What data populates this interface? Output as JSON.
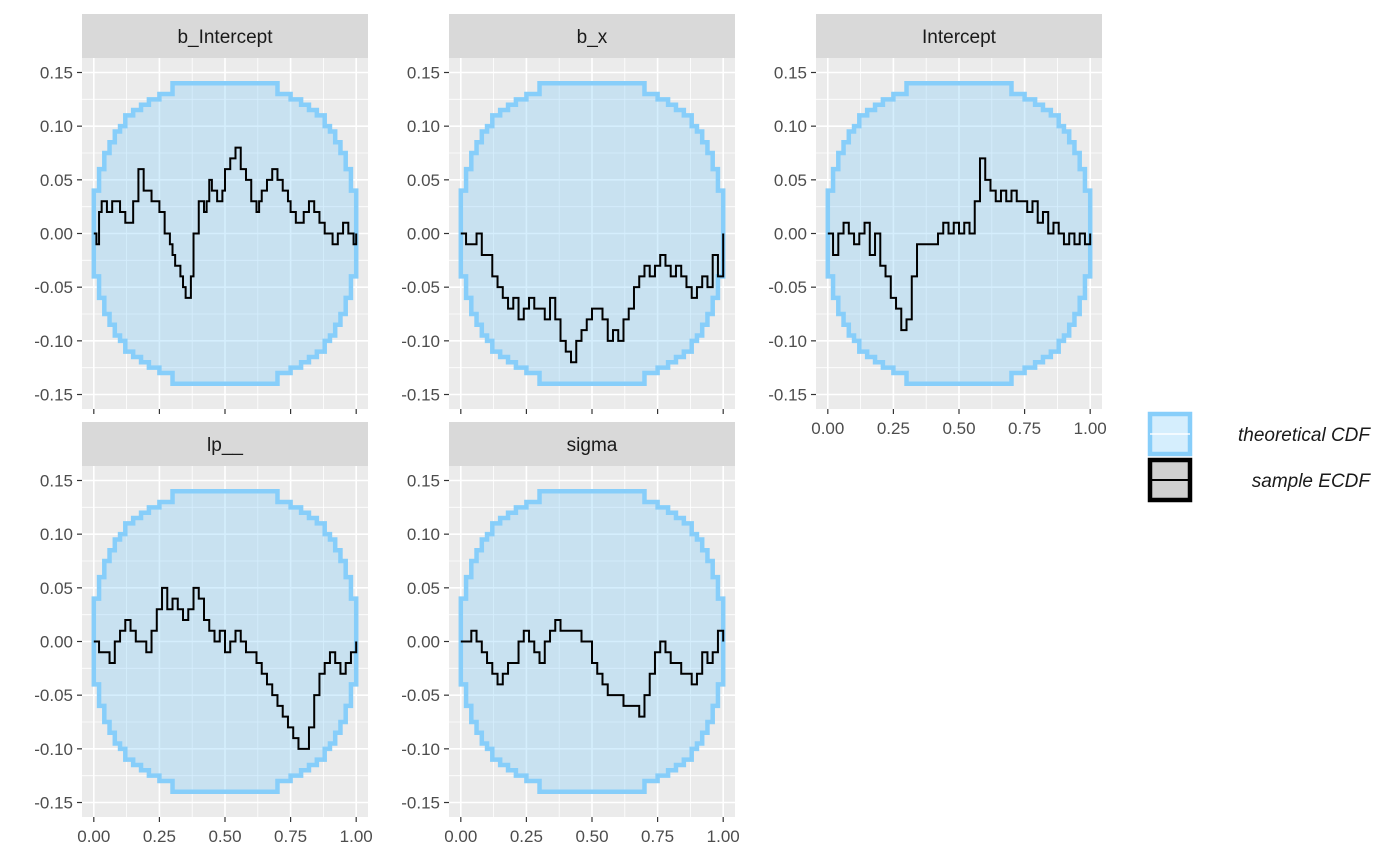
{
  "chart_data": {
    "type": "line",
    "xlim": [
      0,
      1
    ],
    "ylim": [
      -0.15,
      0.15
    ],
    "x_ticks": [
      "0.00",
      "0.25",
      "0.50",
      "0.75",
      "1.00"
    ],
    "y_ticks": [
      "0.15",
      "0.10",
      "0.05",
      "0.00",
      "-0.05",
      "-0.10",
      "-0.15"
    ],
    "grid": true,
    "legend_position": "right",
    "legend": [
      {
        "label": "theoretical CDF",
        "color": "#87CEFA"
      },
      {
        "label": "sample ECDF",
        "color": "#000000"
      }
    ],
    "band": {
      "x": [
        0,
        0.02,
        0.04,
        0.06,
        0.08,
        0.1,
        0.12,
        0.15,
        0.18,
        0.21,
        0.25,
        0.3,
        0.42,
        0.5,
        0.58,
        0.7,
        0.75,
        0.79,
        0.82,
        0.85,
        0.88,
        0.9,
        0.92,
        0.94,
        0.96,
        0.98,
        1
      ],
      "upper": [
        0.04,
        0.06,
        0.075,
        0.085,
        0.095,
        0.1,
        0.11,
        0.115,
        0.12,
        0.125,
        0.13,
        0.14,
        0.14,
        0.14,
        0.14,
        0.13,
        0.125,
        0.12,
        0.115,
        0.11,
        0.1,
        0.095,
        0.085,
        0.075,
        0.06,
        0.04,
        0
      ],
      "lower": [
        -0.04,
        -0.06,
        -0.075,
        -0.085,
        -0.095,
        -0.1,
        -0.11,
        -0.115,
        -0.12,
        -0.125,
        -0.13,
        -0.14,
        -0.14,
        -0.14,
        -0.14,
        -0.13,
        -0.125,
        -0.12,
        -0.115,
        -0.11,
        -0.1,
        -0.095,
        -0.085,
        -0.075,
        -0.06,
        -0.04,
        0
      ]
    },
    "panels": [
      {
        "title": "b_Intercept",
        "x": [
          0,
          0.01,
          0.02,
          0.03,
          0.05,
          0.07,
          0.1,
          0.12,
          0.15,
          0.17,
          0.19,
          0.22,
          0.25,
          0.27,
          0.29,
          0.3,
          0.31,
          0.33,
          0.34,
          0.35,
          0.37,
          0.38,
          0.4,
          0.42,
          0.43,
          0.44,
          0.45,
          0.47,
          0.49,
          0.5,
          0.52,
          0.54,
          0.56,
          0.58,
          0.6,
          0.62,
          0.63,
          0.64,
          0.66,
          0.68,
          0.7,
          0.72,
          0.74,
          0.75,
          0.77,
          0.8,
          0.82,
          0.84,
          0.86,
          0.88,
          0.91,
          0.93,
          0.95,
          0.97,
          0.99,
          1
        ],
        "y": [
          0,
          -0.01,
          0.02,
          0.03,
          0.02,
          0.03,
          0.02,
          0.01,
          0.03,
          0.06,
          0.04,
          0.03,
          0.02,
          0,
          -0.01,
          -0.02,
          -0.03,
          -0.04,
          -0.05,
          -0.06,
          -0.04,
          0,
          0.03,
          0.02,
          0.03,
          0.05,
          0.04,
          0.03,
          0.04,
          0.06,
          0.07,
          0.08,
          0.06,
          0.05,
          0.03,
          0.02,
          0.03,
          0.04,
          0.05,
          0.06,
          0.05,
          0.04,
          0.03,
          0.02,
          0.01,
          0.02,
          0.03,
          0.02,
          0.01,
          0,
          -0.01,
          0,
          0.01,
          0,
          -0.01,
          0
        ]
      },
      {
        "title": "b_x",
        "x": [
          0,
          0.02,
          0.04,
          0.06,
          0.08,
          0.1,
          0.12,
          0.14,
          0.16,
          0.18,
          0.2,
          0.22,
          0.24,
          0.26,
          0.28,
          0.3,
          0.32,
          0.34,
          0.36,
          0.38,
          0.4,
          0.42,
          0.44,
          0.46,
          0.48,
          0.5,
          0.52,
          0.54,
          0.56,
          0.58,
          0.6,
          0.62,
          0.64,
          0.66,
          0.68,
          0.7,
          0.72,
          0.74,
          0.76,
          0.78,
          0.8,
          0.82,
          0.84,
          0.86,
          0.88,
          0.9,
          0.92,
          0.94,
          0.96,
          0.98,
          1
        ],
        "y": [
          0,
          -0.01,
          -0.01,
          0,
          -0.02,
          -0.02,
          -0.04,
          -0.05,
          -0.06,
          -0.07,
          -0.06,
          -0.08,
          -0.07,
          -0.06,
          -0.07,
          -0.07,
          -0.08,
          -0.06,
          -0.08,
          -0.1,
          -0.11,
          -0.12,
          -0.1,
          -0.09,
          -0.08,
          -0.07,
          -0.07,
          -0.08,
          -0.1,
          -0.09,
          -0.1,
          -0.08,
          -0.07,
          -0.05,
          -0.04,
          -0.03,
          -0.04,
          -0.03,
          -0.02,
          -0.03,
          -0.04,
          -0.03,
          -0.04,
          -0.05,
          -0.06,
          -0.05,
          -0.04,
          -0.05,
          -0.02,
          -0.04,
          0
        ]
      },
      {
        "title": "Intercept",
        "x": [
          0,
          0.02,
          0.04,
          0.06,
          0.08,
          0.1,
          0.12,
          0.14,
          0.16,
          0.18,
          0.2,
          0.22,
          0.24,
          0.26,
          0.28,
          0.3,
          0.32,
          0.34,
          0.36,
          0.38,
          0.4,
          0.42,
          0.44,
          0.46,
          0.48,
          0.5,
          0.52,
          0.54,
          0.56,
          0.58,
          0.6,
          0.62,
          0.64,
          0.66,
          0.68,
          0.7,
          0.72,
          0.74,
          0.76,
          0.78,
          0.8,
          0.82,
          0.84,
          0.86,
          0.88,
          0.9,
          0.92,
          0.94,
          0.96,
          0.98,
          1
        ],
        "y": [
          0,
          -0.02,
          0,
          0.01,
          0,
          -0.01,
          0,
          0.01,
          -0.02,
          0,
          -0.03,
          -0.04,
          -0.06,
          -0.07,
          -0.09,
          -0.08,
          -0.04,
          -0.01,
          -0.01,
          -0.01,
          -0.01,
          0,
          0.01,
          0,
          0.01,
          0,
          0.01,
          0,
          0.03,
          0.07,
          0.05,
          0.04,
          0.03,
          0.04,
          0.03,
          0.04,
          0.03,
          0.03,
          0.02,
          0.03,
          0.01,
          0.02,
          0,
          0.01,
          0,
          -0.01,
          0,
          -0.01,
          0,
          -0.01,
          0
        ]
      },
      {
        "title": "lp__",
        "x": [
          0,
          0.02,
          0.04,
          0.06,
          0.08,
          0.1,
          0.12,
          0.14,
          0.16,
          0.18,
          0.2,
          0.22,
          0.24,
          0.26,
          0.28,
          0.3,
          0.32,
          0.34,
          0.36,
          0.38,
          0.4,
          0.42,
          0.44,
          0.46,
          0.48,
          0.5,
          0.52,
          0.54,
          0.56,
          0.58,
          0.6,
          0.62,
          0.64,
          0.66,
          0.68,
          0.7,
          0.72,
          0.74,
          0.76,
          0.78,
          0.8,
          0.82,
          0.84,
          0.86,
          0.88,
          0.9,
          0.92,
          0.94,
          0.96,
          0.98,
          1
        ],
        "y": [
          0,
          -0.01,
          -0.01,
          -0.02,
          0,
          0.01,
          0.02,
          0.01,
          0,
          0,
          -0.01,
          0.01,
          0.03,
          0.05,
          0.03,
          0.04,
          0.03,
          0.02,
          0.03,
          0.05,
          0.04,
          0.02,
          0.01,
          0,
          0.01,
          -0.01,
          0,
          0.01,
          0,
          -0.01,
          -0.01,
          -0.02,
          -0.03,
          -0.04,
          -0.05,
          -0.06,
          -0.07,
          -0.08,
          -0.09,
          -0.1,
          -0.1,
          -0.08,
          -0.05,
          -0.03,
          -0.02,
          -0.01,
          -0.02,
          -0.03,
          -0.02,
          -0.01,
          0
        ]
      },
      {
        "title": "sigma",
        "x": [
          0,
          0.02,
          0.04,
          0.06,
          0.08,
          0.1,
          0.12,
          0.14,
          0.16,
          0.18,
          0.2,
          0.22,
          0.24,
          0.26,
          0.28,
          0.3,
          0.32,
          0.34,
          0.36,
          0.38,
          0.4,
          0.42,
          0.44,
          0.46,
          0.48,
          0.5,
          0.52,
          0.54,
          0.56,
          0.58,
          0.6,
          0.62,
          0.64,
          0.66,
          0.68,
          0.7,
          0.72,
          0.74,
          0.76,
          0.78,
          0.8,
          0.82,
          0.84,
          0.86,
          0.88,
          0.9,
          0.92,
          0.94,
          0.96,
          0.98,
          1
        ],
        "y": [
          0,
          0,
          0.01,
          0,
          -0.01,
          -0.02,
          -0.03,
          -0.04,
          -0.03,
          -0.02,
          -0.02,
          0,
          0.01,
          0,
          -0.01,
          -0.02,
          0,
          0.01,
          0.02,
          0.01,
          0.01,
          0.01,
          0.01,
          0,
          0,
          -0.02,
          -0.03,
          -0.04,
          -0.05,
          -0.05,
          -0.05,
          -0.06,
          -0.06,
          -0.06,
          -0.07,
          -0.05,
          -0.03,
          -0.01,
          0,
          -0.01,
          -0.02,
          -0.02,
          -0.03,
          -0.03,
          -0.04,
          -0.03,
          -0.01,
          -0.02,
          -0.01,
          0.01,
          0
        ]
      }
    ]
  }
}
